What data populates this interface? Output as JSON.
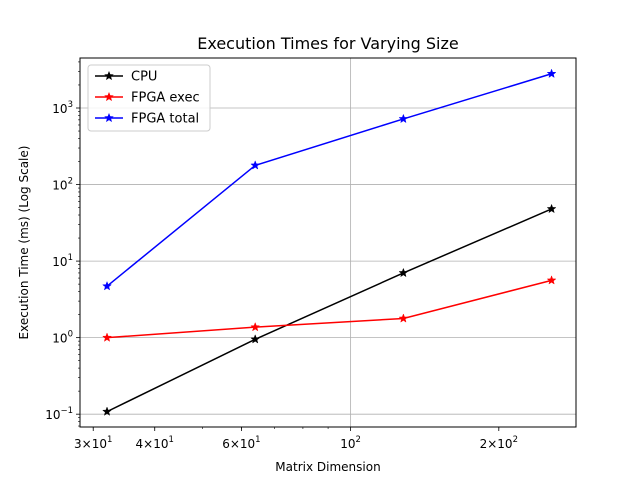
{
  "chart_data": {
    "type": "line",
    "title": "Execution Times for Varying Size",
    "xlabel": "Matrix Dimension",
    "ylabel": "Execution Time (ms) (Log Scale)",
    "xscale": "log",
    "yscale": "log",
    "xlim": [
      28.2,
      287
    ],
    "ylim": [
      0.068,
      4500
    ],
    "grid": true,
    "legend_position": "top-left",
    "x": [
      32,
      64,
      128,
      256
    ],
    "x_ticks": [
      {
        "value": 30,
        "base": "3×10",
        "exp": "1"
      },
      {
        "value": 40,
        "base": "4×10",
        "exp": "1"
      },
      {
        "value": 60,
        "base": "6×10",
        "exp": "1"
      },
      {
        "value": 100,
        "base": "10",
        "exp": "2"
      },
      {
        "value": 200,
        "base": "2×10",
        "exp": "2"
      }
    ],
    "y_ticks": [
      {
        "value": 0.1,
        "base": "10",
        "exp": "−1"
      },
      {
        "value": 1,
        "base": "10",
        "exp": "0"
      },
      {
        "value": 10,
        "base": "10",
        "exp": "1"
      },
      {
        "value": 100,
        "base": "10",
        "exp": "2"
      },
      {
        "value": 1000,
        "base": "10",
        "exp": "3"
      }
    ],
    "series": [
      {
        "name": "CPU",
        "color": "#000000",
        "marker": "star",
        "values": [
          0.108,
          0.95,
          7.0,
          48.0
        ]
      },
      {
        "name": "FPGA exec",
        "color": "#ff0000",
        "marker": "star",
        "values": [
          1.0,
          1.37,
          1.78,
          5.6
        ]
      },
      {
        "name": "FPGA total",
        "color": "#0000ff",
        "marker": "star",
        "values": [
          4.7,
          178,
          720,
          2800
        ]
      }
    ]
  }
}
